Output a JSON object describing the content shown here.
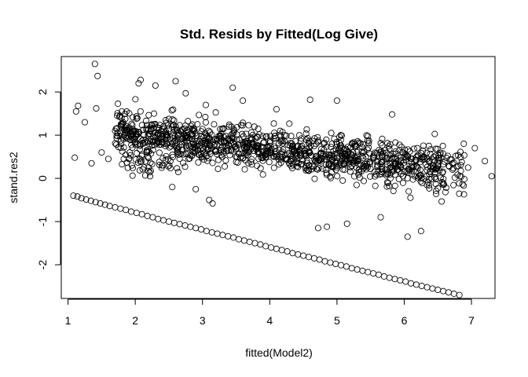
{
  "chart_data": {
    "type": "scatter",
    "title": "Std. Resids by Fitted(Log Give)",
    "xlabel": "fitted(Model2)",
    "ylabel": "stand.res2",
    "xlim": [
      0.9,
      7.35
    ],
    "ylim": [
      -2.78,
      2.82
    ],
    "xticks": [
      1,
      2,
      3,
      4,
      5,
      6,
      7
    ],
    "yticks": [
      -2,
      -1,
      0,
      1,
      2
    ],
    "grid": false,
    "legend": "none",
    "marker": "open-circle",
    "series": [
      {
        "points": [
          [
            1.08,
            -0.4
          ],
          [
            1.14,
            -0.42
          ],
          [
            1.2,
            -0.46
          ],
          [
            1.27,
            -0.49
          ],
          [
            1.34,
            -0.52
          ],
          [
            1.41,
            -0.55
          ],
          [
            1.48,
            -0.58
          ],
          [
            1.55,
            -0.61
          ],
          [
            1.62,
            -0.64
          ],
          [
            1.7,
            -0.67
          ],
          [
            1.78,
            -0.7
          ],
          [
            1.86,
            -0.73
          ],
          [
            1.94,
            -0.77
          ],
          [
            2.02,
            -0.8
          ],
          [
            2.1,
            -0.83
          ],
          [
            2.18,
            -0.87
          ],
          [
            2.26,
            -0.9
          ],
          [
            2.34,
            -0.94
          ],
          [
            2.42,
            -0.97
          ],
          [
            2.5,
            -1.0
          ],
          [
            2.58,
            -1.03
          ],
          [
            2.66,
            -1.06
          ],
          [
            2.74,
            -1.09
          ],
          [
            2.82,
            -1.12
          ],
          [
            2.9,
            -1.15
          ],
          [
            2.98,
            -1.18
          ],
          [
            3.06,
            -1.22
          ],
          [
            3.14,
            -1.25
          ],
          [
            3.22,
            -1.28
          ],
          [
            3.3,
            -1.31
          ],
          [
            3.38,
            -1.34
          ],
          [
            3.46,
            -1.37
          ],
          [
            3.54,
            -1.41
          ],
          [
            3.62,
            -1.44
          ],
          [
            3.7,
            -1.47
          ],
          [
            3.78,
            -1.5
          ],
          [
            3.86,
            -1.53
          ],
          [
            3.94,
            -1.57
          ],
          [
            4.02,
            -1.6
          ],
          [
            4.1,
            -1.63
          ],
          [
            4.18,
            -1.66
          ],
          [
            4.26,
            -1.69
          ],
          [
            4.34,
            -1.73
          ],
          [
            4.42,
            -1.76
          ],
          [
            4.5,
            -1.79
          ],
          [
            4.58,
            -1.82
          ],
          [
            4.66,
            -1.85
          ],
          [
            4.74,
            -1.88
          ],
          [
            4.82,
            -1.92
          ],
          [
            4.9,
            -1.95
          ],
          [
            4.98,
            -1.98
          ],
          [
            5.06,
            -2.01
          ],
          [
            5.14,
            -2.04
          ],
          [
            5.22,
            -2.08
          ],
          [
            5.3,
            -2.11
          ],
          [
            5.38,
            -2.14
          ],
          [
            5.46,
            -2.17
          ],
          [
            5.54,
            -2.2
          ],
          [
            5.62,
            -2.23
          ],
          [
            5.7,
            -2.27
          ],
          [
            5.78,
            -2.3
          ],
          [
            5.86,
            -2.33
          ],
          [
            5.94,
            -2.36
          ],
          [
            6.02,
            -2.39
          ],
          [
            6.1,
            -2.43
          ],
          [
            6.18,
            -2.46
          ],
          [
            6.26,
            -2.49
          ],
          [
            6.34,
            -2.52
          ],
          [
            6.42,
            -2.55
          ],
          [
            6.5,
            -2.58
          ],
          [
            6.58,
            -2.61
          ],
          [
            6.66,
            -2.64
          ],
          [
            6.74,
            -2.67
          ],
          [
            6.82,
            -2.7
          ],
          [
            1.4,
            2.65
          ],
          [
            1.44,
            2.37
          ],
          [
            1.42,
            1.62
          ],
          [
            1.12,
            1.55
          ],
          [
            1.15,
            1.68
          ],
          [
            1.25,
            1.3
          ],
          [
            1.35,
            0.35
          ],
          [
            1.1,
            0.48
          ],
          [
            1.5,
            0.6
          ],
          [
            1.6,
            0.45
          ],
          [
            1.7,
            1.1
          ],
          [
            1.8,
            1.55
          ],
          [
            2.05,
            2.2
          ],
          [
            2.08,
            2.28
          ],
          [
            2.3,
            2.15
          ],
          [
            2.6,
            2.25
          ],
          [
            2.75,
            1.97
          ],
          [
            3.05,
            1.7
          ],
          [
            3.45,
            2.1
          ],
          [
            3.6,
            1.8
          ],
          [
            4.1,
            1.6
          ],
          [
            4.6,
            1.82
          ],
          [
            5.0,
            1.8
          ],
          [
            5.82,
            1.48
          ],
          [
            6.05,
            -1.35
          ],
          [
            6.25,
            -1.22
          ],
          [
            5.65,
            -0.9
          ],
          [
            4.85,
            -1.12
          ],
          [
            4.72,
            -1.15
          ],
          [
            5.15,
            -1.05
          ],
          [
            1.95,
            0.3
          ],
          [
            2.1,
            0.55
          ],
          [
            2.22,
            0.05
          ],
          [
            2.45,
            0.9
          ],
          [
            2.55,
            -0.2
          ],
          [
            2.9,
            -0.25
          ],
          [
            3.1,
            -0.5
          ],
          [
            3.15,
            -0.58
          ],
          [
            7.2,
            0.4
          ],
          [
            7.3,
            0.05
          ],
          [
            7.05,
            0.7
          ],
          [
            6.95,
            0.25
          ]
        ]
      }
    ]
  }
}
